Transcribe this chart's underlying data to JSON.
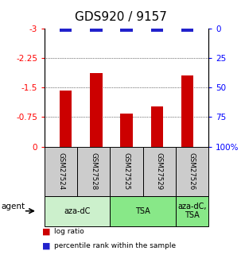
{
  "title": "GDS920 / 9157",
  "samples": [
    "GSM27524",
    "GSM27528",
    "GSM27525",
    "GSM27529",
    "GSM27526"
  ],
  "log_ratio": [
    -1.42,
    -1.88,
    -0.85,
    -1.02,
    -1.82
  ],
  "percentile_rank": [
    2.5,
    2.5,
    2.5,
    2.5,
    2.5
  ],
  "left_yticks": [
    0,
    -0.75,
    -1.5,
    -2.25,
    -3
  ],
  "right_yticks": [
    100,
    75,
    50,
    25,
    0
  ],
  "left_yticklabels": [
    "0",
    "-0.75",
    "-1.5",
    "-2.25",
    "-3"
  ],
  "right_yticklabels": [
    "100%",
    "75",
    "50",
    "25",
    "0"
  ],
  "agent_groups": [
    {
      "label": "aza-dC",
      "n_samples": 2,
      "color": "#ccf0cc"
    },
    {
      "label": "TSA",
      "n_samples": 2,
      "color": "#88e888"
    },
    {
      "label": "aza-dC,\nTSA",
      "n_samples": 1,
      "color": "#88e888"
    }
  ],
  "bar_color_red": "#cc0000",
  "bar_color_blue": "#2222cc",
  "sample_box_color": "#cccccc",
  "title_fontsize": 11,
  "tick_fontsize": 7.5,
  "bar_width": 0.4,
  "legend_items": [
    {
      "color": "#cc0000",
      "label": "log ratio"
    },
    {
      "color": "#2222cc",
      "label": "percentile rank within the sample"
    }
  ]
}
